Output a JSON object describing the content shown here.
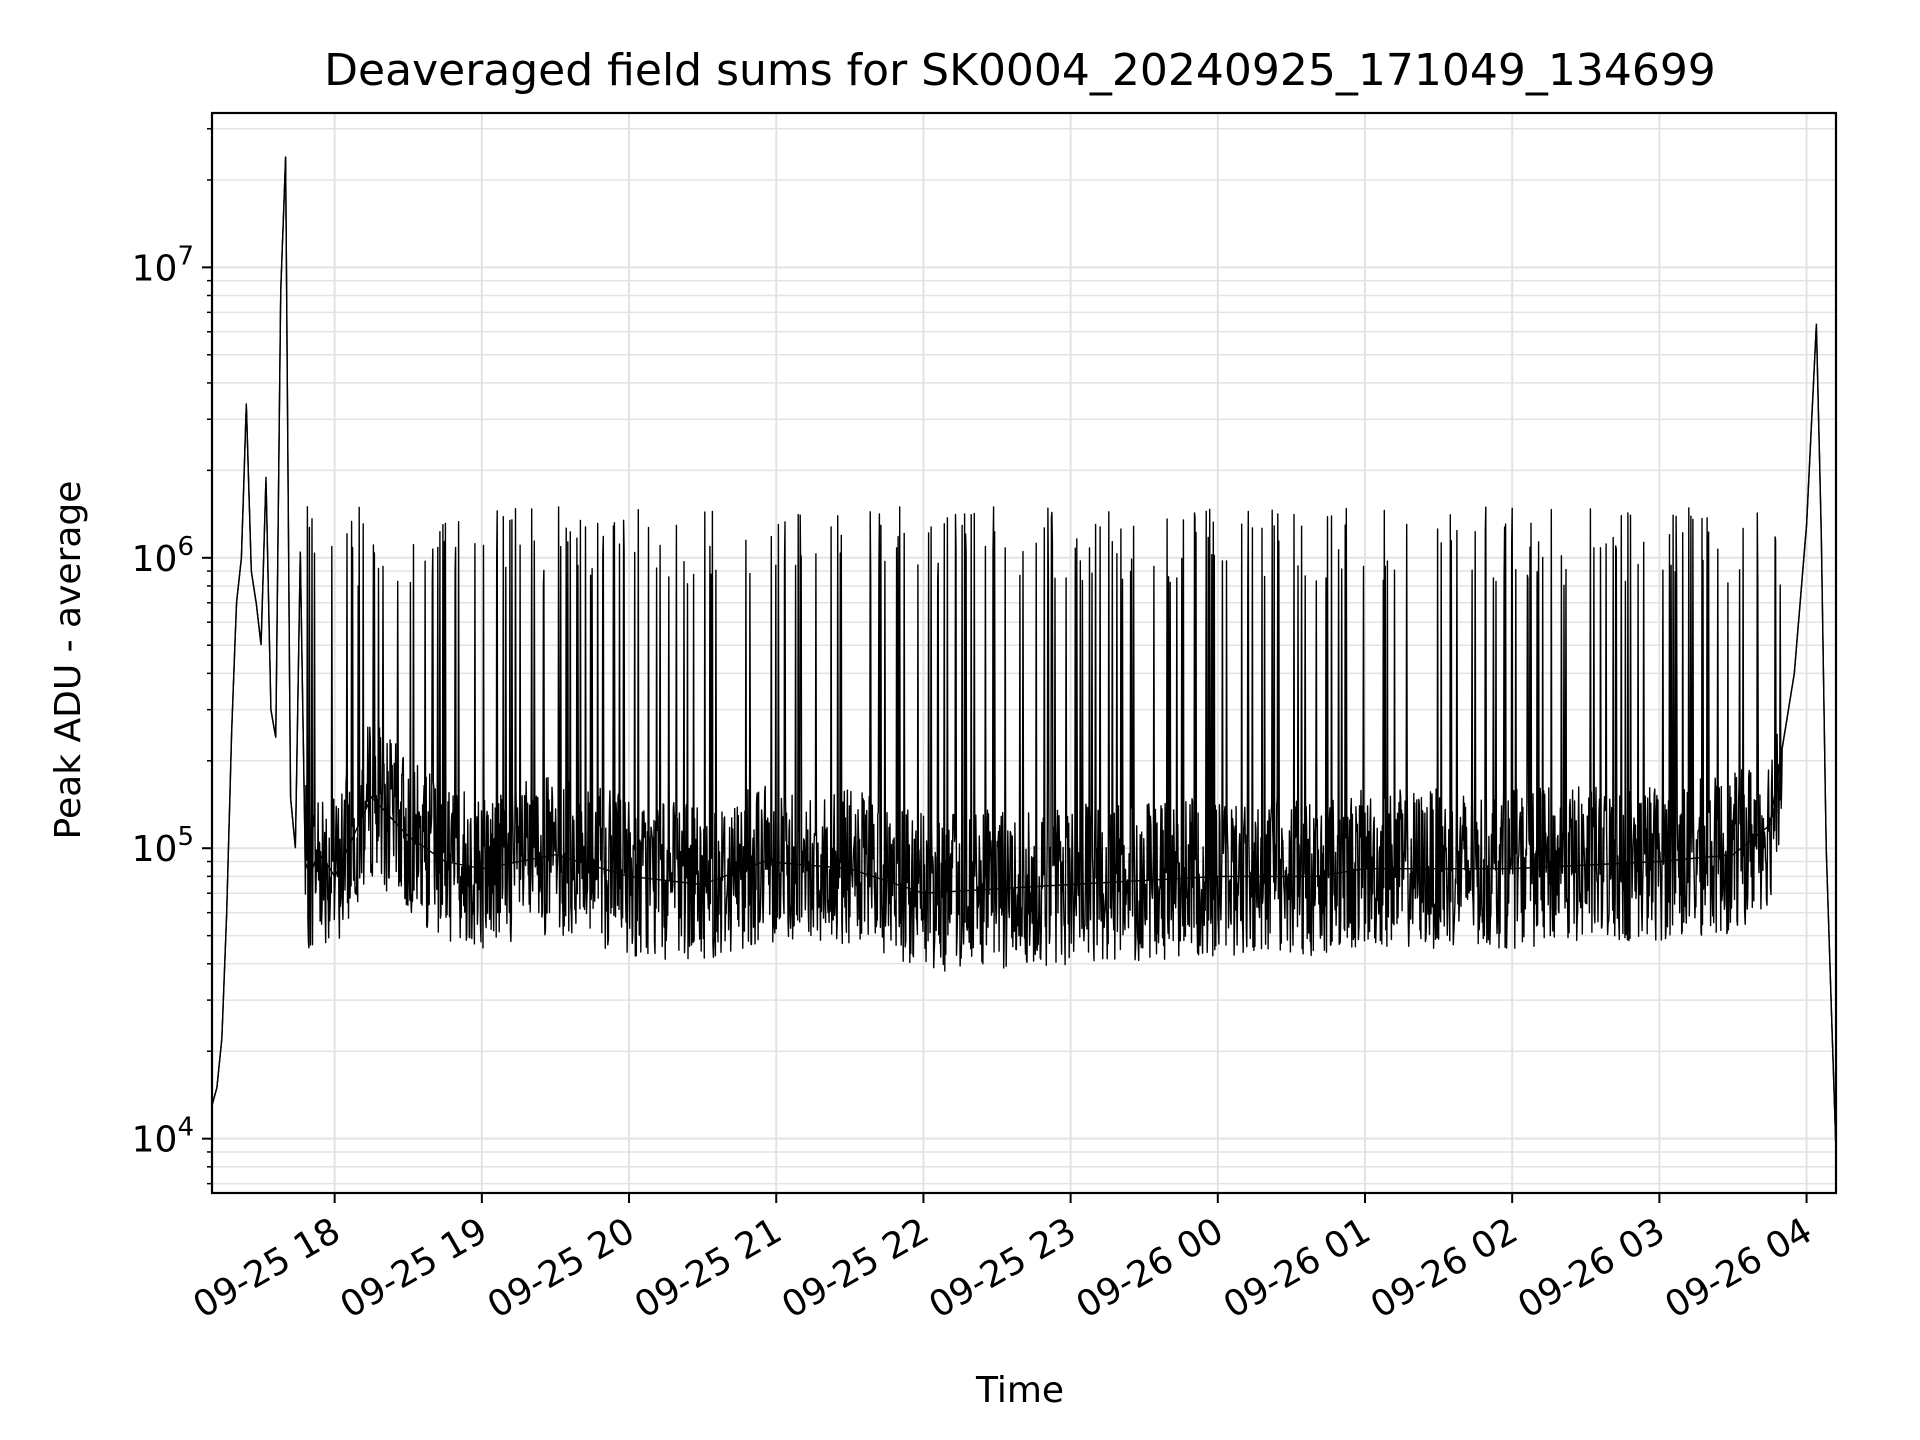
{
  "chart_data": {
    "type": "line",
    "title": "Deaveraged field sums for SK0004_20240925_171049_134699",
    "xlabel": "Time",
    "ylabel": "Peak ADU - average",
    "yscale": "log",
    "ylim": [
      6500,
      34000000
    ],
    "xlim": [
      "2024-09-25 17:10",
      "2024-09-26 04:12"
    ],
    "grid": true,
    "line_color": "#000000",
    "x_ticks": [
      "09-25 18",
      "09-25 19",
      "09-25 20",
      "09-25 21",
      "09-25 22",
      "09-25 23",
      "09-26 00",
      "09-26 01",
      "09-26 02",
      "09-26 03",
      "09-26 04"
    ],
    "y_ticks": [
      {
        "value": 10000,
        "base": "10",
        "exp": "4"
      },
      {
        "value": 100000,
        "base": "10",
        "exp": "5"
      },
      {
        "value": 1000000,
        "base": "10",
        "exp": "6"
      },
      {
        "value": 10000000,
        "base": "10",
        "exp": "7"
      }
    ],
    "series": [
      {
        "x": [
          "2024-09-25 17:10",
          "2024-09-25 17:12",
          "2024-09-25 17:14",
          "2024-09-25 17:16",
          "2024-09-25 17:18",
          "2024-09-25 17:20",
          "2024-09-25 17:22",
          "2024-09-25 17:24",
          "2024-09-25 17:26",
          "2024-09-25 17:28",
          "2024-09-25 17:30",
          "2024-09-25 17:32",
          "2024-09-25 17:34",
          "2024-09-25 17:36",
          "2024-09-25 17:38",
          "2024-09-25 17:40",
          "2024-09-25 17:42",
          "2024-09-25 17:44",
          "2024-09-25 17:46",
          "2024-09-25 17:48",
          "2024-09-25 17:50",
          "2024-09-25 17:52",
          "2024-09-25 17:54",
          "2024-09-25 17:56",
          "2024-09-25 17:58",
          "2024-09-25 18:00",
          "2024-09-25 18:15",
          "2024-09-25 18:30",
          "2024-09-25 18:45",
          "2024-09-25 19:00",
          "2024-09-25 19:30",
          "2024-09-25 20:00",
          "2024-09-25 20:30",
          "2024-09-25 20:55",
          "2024-09-25 21:30",
          "2024-09-25 22:00",
          "2024-09-25 23:00",
          "2024-09-26 00:00",
          "2024-09-26 00:40",
          "2024-09-26 01:00",
          "2024-09-26 02:00",
          "2024-09-26 03:00",
          "2024-09-26 03:30",
          "2024-09-26 03:45",
          "2024-09-26 03:55",
          "2024-09-26 04:00",
          "2024-09-26 04:04",
          "2024-09-26 04:06",
          "2024-09-26 04:08",
          "2024-09-26 04:10",
          "2024-09-26 04:12"
        ],
        "y": [
          13000,
          15000,
          22000,
          60000,
          250000,
          700000,
          1000000,
          3400000,
          900000,
          700000,
          500000,
          1900000,
          300000,
          240000,
          8200000,
          24000000,
          150000,
          100000,
          1050000,
          90000,
          80000,
          90000,
          95000,
          90000,
          85000,
          80000,
          150000,
          110000,
          90000,
          85000,
          95000,
          80000,
          75000,
          90000,
          85000,
          70000,
          75000,
          80000,
          80000,
          85000,
          85000,
          90000,
          95000,
          120000,
          400000,
          1300000,
          6400000,
          1200000,
          100000,
          30000,
          9000
        ]
      }
    ]
  }
}
